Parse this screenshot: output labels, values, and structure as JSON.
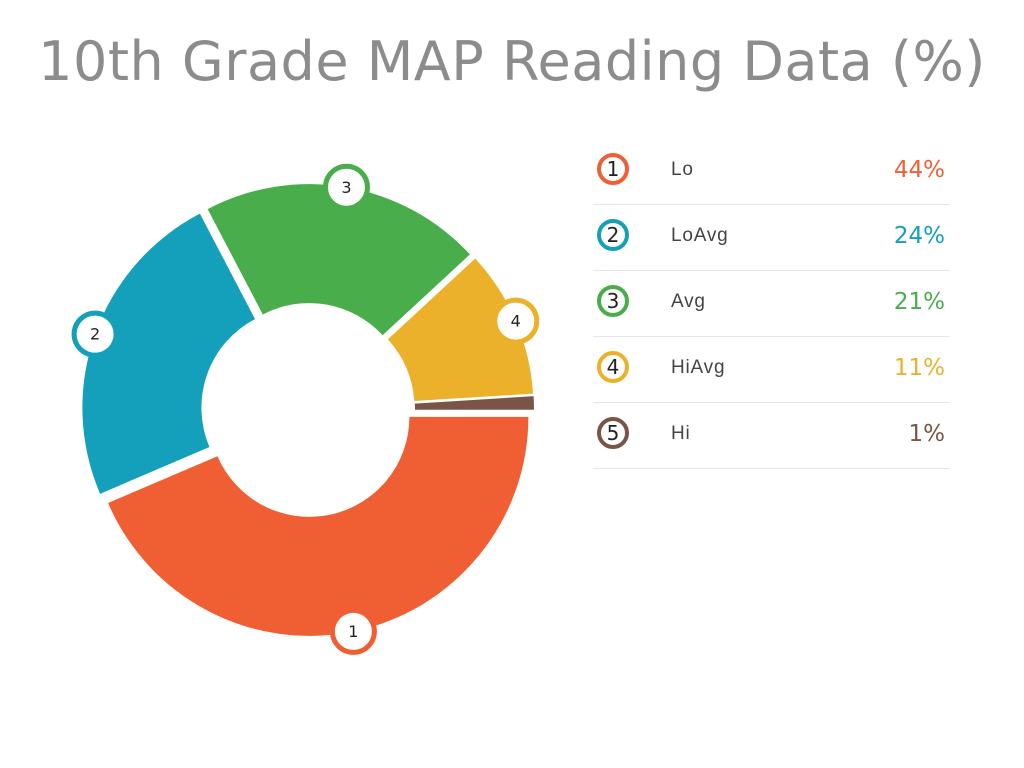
{
  "chart_data": {
    "type": "pie",
    "title": "10th Grade MAP Reading Data (%)",
    "categories": [
      "Lo",
      "LoAvg",
      "Avg",
      "HiAvg",
      "Hi"
    ],
    "numbers": [
      "1",
      "2",
      "3",
      "4",
      "5"
    ],
    "values": [
      44,
      24,
      21,
      11,
      1
    ],
    "value_labels": [
      "44%",
      "24%",
      "21%",
      "11%",
      "1%"
    ],
    "colors": [
      "#f05f34",
      "#149fba",
      "#4aad4c",
      "#ebb12a",
      "#7a5547"
    ],
    "legend_position": "right"
  }
}
